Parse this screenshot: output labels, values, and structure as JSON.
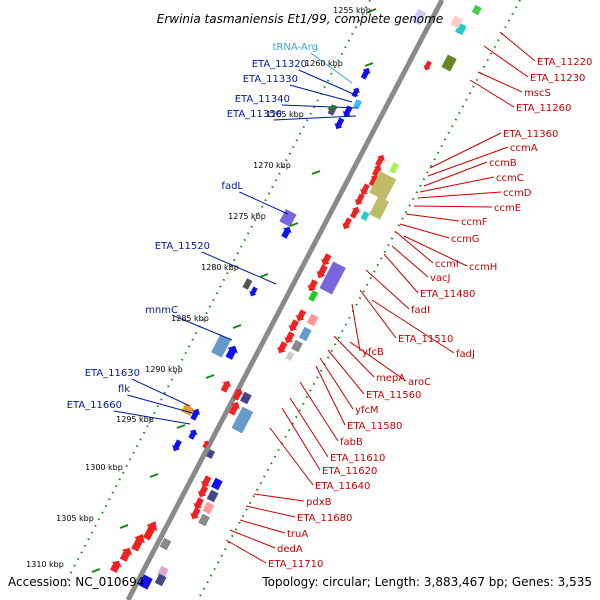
{
  "title": "Erwinia tasmaniensis Et1/99, complete genome",
  "accession": "Accession: NC_010694",
  "summary": "Topology: circular; Length: 3,883,467 bp; Genes: 3,535",
  "colors": {
    "backbone": "#888888",
    "dots": "#118811",
    "left_label": "#001a99",
    "right_label": "#cc0000",
    "trna_label": "#33aadd"
  },
  "ruler": [
    {
      "text": "1255 kbp"
    },
    {
      "text": "1260 kbp"
    },
    {
      "text": "1265 kbp"
    },
    {
      "text": "1270 kbp"
    },
    {
      "text": "1275 kbp"
    },
    {
      "text": "1280 kbp"
    },
    {
      "text": "1285 kbp"
    },
    {
      "text": "1290 kbp"
    },
    {
      "text": "1295 kbp"
    },
    {
      "text": "1300 kbp"
    },
    {
      "text": "1305 kbp"
    },
    {
      "text": "1310 kbp"
    }
  ],
  "left_labels": [
    {
      "text": "tRNA-Arg",
      "kind": "trna"
    },
    {
      "text": "ETA_11320",
      "kind": "gene"
    },
    {
      "text": "ETA_11330",
      "kind": "gene"
    },
    {
      "text": "ETA_11340",
      "kind": "gene"
    },
    {
      "text": "ETA_11350",
      "kind": "gene"
    },
    {
      "text": "fadL",
      "kind": "gene"
    },
    {
      "text": "ETA_11520",
      "kind": "gene"
    },
    {
      "text": "mnmC",
      "kind": "gene"
    },
    {
      "text": "ETA_11630",
      "kind": "gene"
    },
    {
      "text": "flk",
      "kind": "gene"
    },
    {
      "text": "ETA_11660",
      "kind": "gene"
    }
  ],
  "right_labels": [
    {
      "text": "ETA_11220"
    },
    {
      "text": "ETA_11230"
    },
    {
      "text": "mscS"
    },
    {
      "text": "ETA_11260"
    },
    {
      "text": "ETA_11360"
    },
    {
      "text": "ccmA"
    },
    {
      "text": "ccmB"
    },
    {
      "text": "ccmC"
    },
    {
      "text": "ccmD"
    },
    {
      "text": "ccmE"
    },
    {
      "text": "ccmF"
    },
    {
      "text": "ccmG"
    },
    {
      "text": "ccmI"
    },
    {
      "text": "ccmH"
    },
    {
      "text": "vacJ"
    },
    {
      "text": "ETA_11480"
    },
    {
      "text": "fadI"
    },
    {
      "text": "ETA_11510"
    },
    {
      "text": "fadJ"
    },
    {
      "text": "yfcB"
    },
    {
      "text": "mepA"
    },
    {
      "text": "aroC"
    },
    {
      "text": "ETA_11560"
    },
    {
      "text": "yfcM"
    },
    {
      "text": "ETA_11580"
    },
    {
      "text": "fabB"
    },
    {
      "text": "ETA_11610"
    },
    {
      "text": "ETA_11620"
    },
    {
      "text": "ETA_11640"
    },
    {
      "text": "pdxB"
    },
    {
      "text": "ETA_11680"
    },
    {
      "text": "truA"
    },
    {
      "text": "dedA"
    },
    {
      "text": "ETA_11710"
    }
  ]
}
